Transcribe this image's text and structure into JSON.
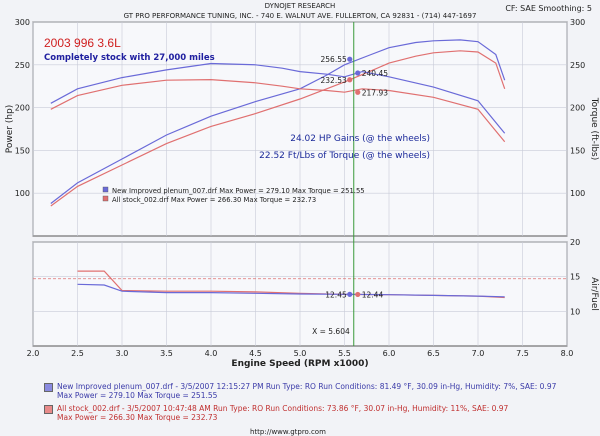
{
  "header": {
    "title": "DYNOJET RESEARCH",
    "subtitle": "GT PRO PERFORMANCE TUNING, INC. - 740 E. WALNUT AVE. FULLERTON, CA 92831 - (714) 447-1697",
    "corner": "CF: SAE  Smoothing: 5"
  },
  "chart_data": [
    {
      "type": "line",
      "title": "2003 996 3.6L",
      "subtitle": "Completely stock with 27,000 miles",
      "xlabel": "Engine Speed (RPM x1000)",
      "ylabel": "Power (hp)",
      "y2label": "Torque (ft-lbs)",
      "xlim": [
        2.0,
        8.0
      ],
      "ylim": [
        50,
        300
      ],
      "x_ticks": [
        "2.0",
        "2.5",
        "3.0",
        "3.5",
        "4.0",
        "4.5",
        "5.0",
        "5.5",
        "6.0",
        "6.5",
        "7.0",
        "7.5",
        "8.0"
      ],
      "y_ticks": [
        "100",
        "150",
        "200",
        "250",
        "300"
      ],
      "y2_ticks": [
        "100",
        "150",
        "200",
        "250",
        "300"
      ],
      "annotations": [
        "24.02  HP Gains (@ the wheels)",
        "22.52 Ft/Lbs of Torque (@ the wheels)"
      ],
      "cursor_x": 5.604,
      "cursor_values": {
        "power_new": "256.55",
        "power_stock": "232.53",
        "torque_new": "240.45",
        "torque_stock": "217.93"
      },
      "legend": [
        {
          "text": "New Improved plenum_007.drf Max Power = 279.10     Max Torque = 251.55",
          "color": "#6a6ad8"
        },
        {
          "text": "All stock_002.drf Max Power = 266.30     Max Torque = 232.73",
          "color": "#e07070"
        }
      ],
      "series": [
        {
          "name": "New Improved plenum_007.drf (Power)",
          "color": "#6a6ad8",
          "x": [
            2.2,
            2.5,
            3.0,
            3.5,
            4.0,
            4.5,
            5.0,
            5.3,
            5.5,
            5.8,
            6.0,
            6.3,
            6.5,
            6.8,
            7.0,
            7.2,
            7.3
          ],
          "y": [
            88,
            112,
            140,
            168,
            190,
            207,
            222,
            238,
            250,
            262,
            270,
            276,
            278,
            279.1,
            277,
            262,
            232
          ]
        },
        {
          "name": "All stock_002.drf (Power)",
          "color": "#e07070",
          "x": [
            2.2,
            2.5,
            3.0,
            3.5,
            4.0,
            4.5,
            5.0,
            5.3,
            5.5,
            5.8,
            6.0,
            6.3,
            6.5,
            6.8,
            7.0,
            7.2,
            7.3
          ],
          "y": [
            85,
            108,
            133,
            158,
            178,
            193,
            210,
            222,
            230,
            243,
            252,
            260,
            264,
            266.3,
            265,
            252,
            222
          ]
        },
        {
          "name": "New Improved plenum_007.drf (Torque)",
          "color": "#6a6ad8",
          "x": [
            2.2,
            2.5,
            3.0,
            3.5,
            4.0,
            4.5,
            4.8,
            5.0,
            5.3,
            5.5,
            5.7,
            6.0,
            6.5,
            7.0,
            7.3
          ],
          "y": [
            205,
            222,
            235,
            244,
            251.5,
            250,
            246,
            242,
            239,
            236,
            242,
            236,
            224,
            208,
            170
          ]
        },
        {
          "name": "All stock_002.drf (Torque)",
          "color": "#e07070",
          "x": [
            2.2,
            2.5,
            3.0,
            3.5,
            4.0,
            4.5,
            4.8,
            5.0,
            5.3,
            5.5,
            5.7,
            6.0,
            6.5,
            7.0,
            7.3
          ],
          "y": [
            198,
            214,
            226,
            232,
            232.7,
            229,
            225,
            222,
            220,
            218,
            222,
            220,
            212,
            198,
            160
          ]
        }
      ]
    },
    {
      "type": "line",
      "xlabel": "Engine Speed (RPM x1000)",
      "ylabel": "Air/Fuel",
      "xlim": [
        2.0,
        8.0
      ],
      "ylim": [
        5,
        20
      ],
      "x_ticks": [
        "2.0",
        "2.5",
        "3.0",
        "3.5",
        "4.0",
        "4.5",
        "5.0",
        "5.5",
        "6.0",
        "6.5",
        "7.0",
        "7.5",
        "8.0"
      ],
      "y2_ticks": [
        "10",
        "15",
        "20"
      ],
      "cursor_label": "X = 5.604",
      "cursor_values": {
        "afr_new": "12.45",
        "afr_stock": "12.44"
      },
      "reference_line": 14.7,
      "series": [
        {
          "name": "New Improved plenum_007.drf (AFR)",
          "color": "#6a6ad8",
          "x": [
            2.5,
            2.8,
            3.0,
            3.5,
            4.0,
            4.5,
            5.0,
            5.5,
            6.0,
            6.5,
            7.0,
            7.3
          ],
          "y": [
            13.9,
            13.8,
            12.9,
            12.7,
            12.7,
            12.6,
            12.5,
            12.45,
            12.4,
            12.3,
            12.2,
            12.1
          ]
        },
        {
          "name": "All stock_002.drf (AFR)",
          "color": "#e07070",
          "x": [
            2.5,
            2.8,
            3.0,
            3.5,
            4.0,
            4.5,
            5.0,
            5.5,
            6.0,
            6.5,
            7.0,
            7.3
          ],
          "y": [
            15.8,
            15.8,
            13.0,
            12.9,
            12.9,
            12.8,
            12.6,
            12.44,
            12.4,
            12.3,
            12.2,
            12.0
          ]
        }
      ]
    }
  ],
  "footer": {
    "run1": {
      "line1": "New Improved plenum_007.drf - 3/5/2007 12:15:27 PM  Run Type: RO  Run Conditions: 81.49 °F, 30.09 in-Hg,  Humidity:  7%,  SAE: 0.97",
      "line2": "Max Power = 279.10  Max Torque = 251.55",
      "color": "#6a6ad8"
    },
    "run2": {
      "line1": "All stock_002.drf - 3/5/2007 10:47:48 AM  Run Type: RO  Run Conditions: 73.86 °F, 30.07 in-Hg,  Humidity:  11%,  SAE: 0.97",
      "line2": "Max Power = 266.30  Max Torque = 232.73",
      "color": "#e07070"
    },
    "url": "http://www.gtpro.com"
  }
}
